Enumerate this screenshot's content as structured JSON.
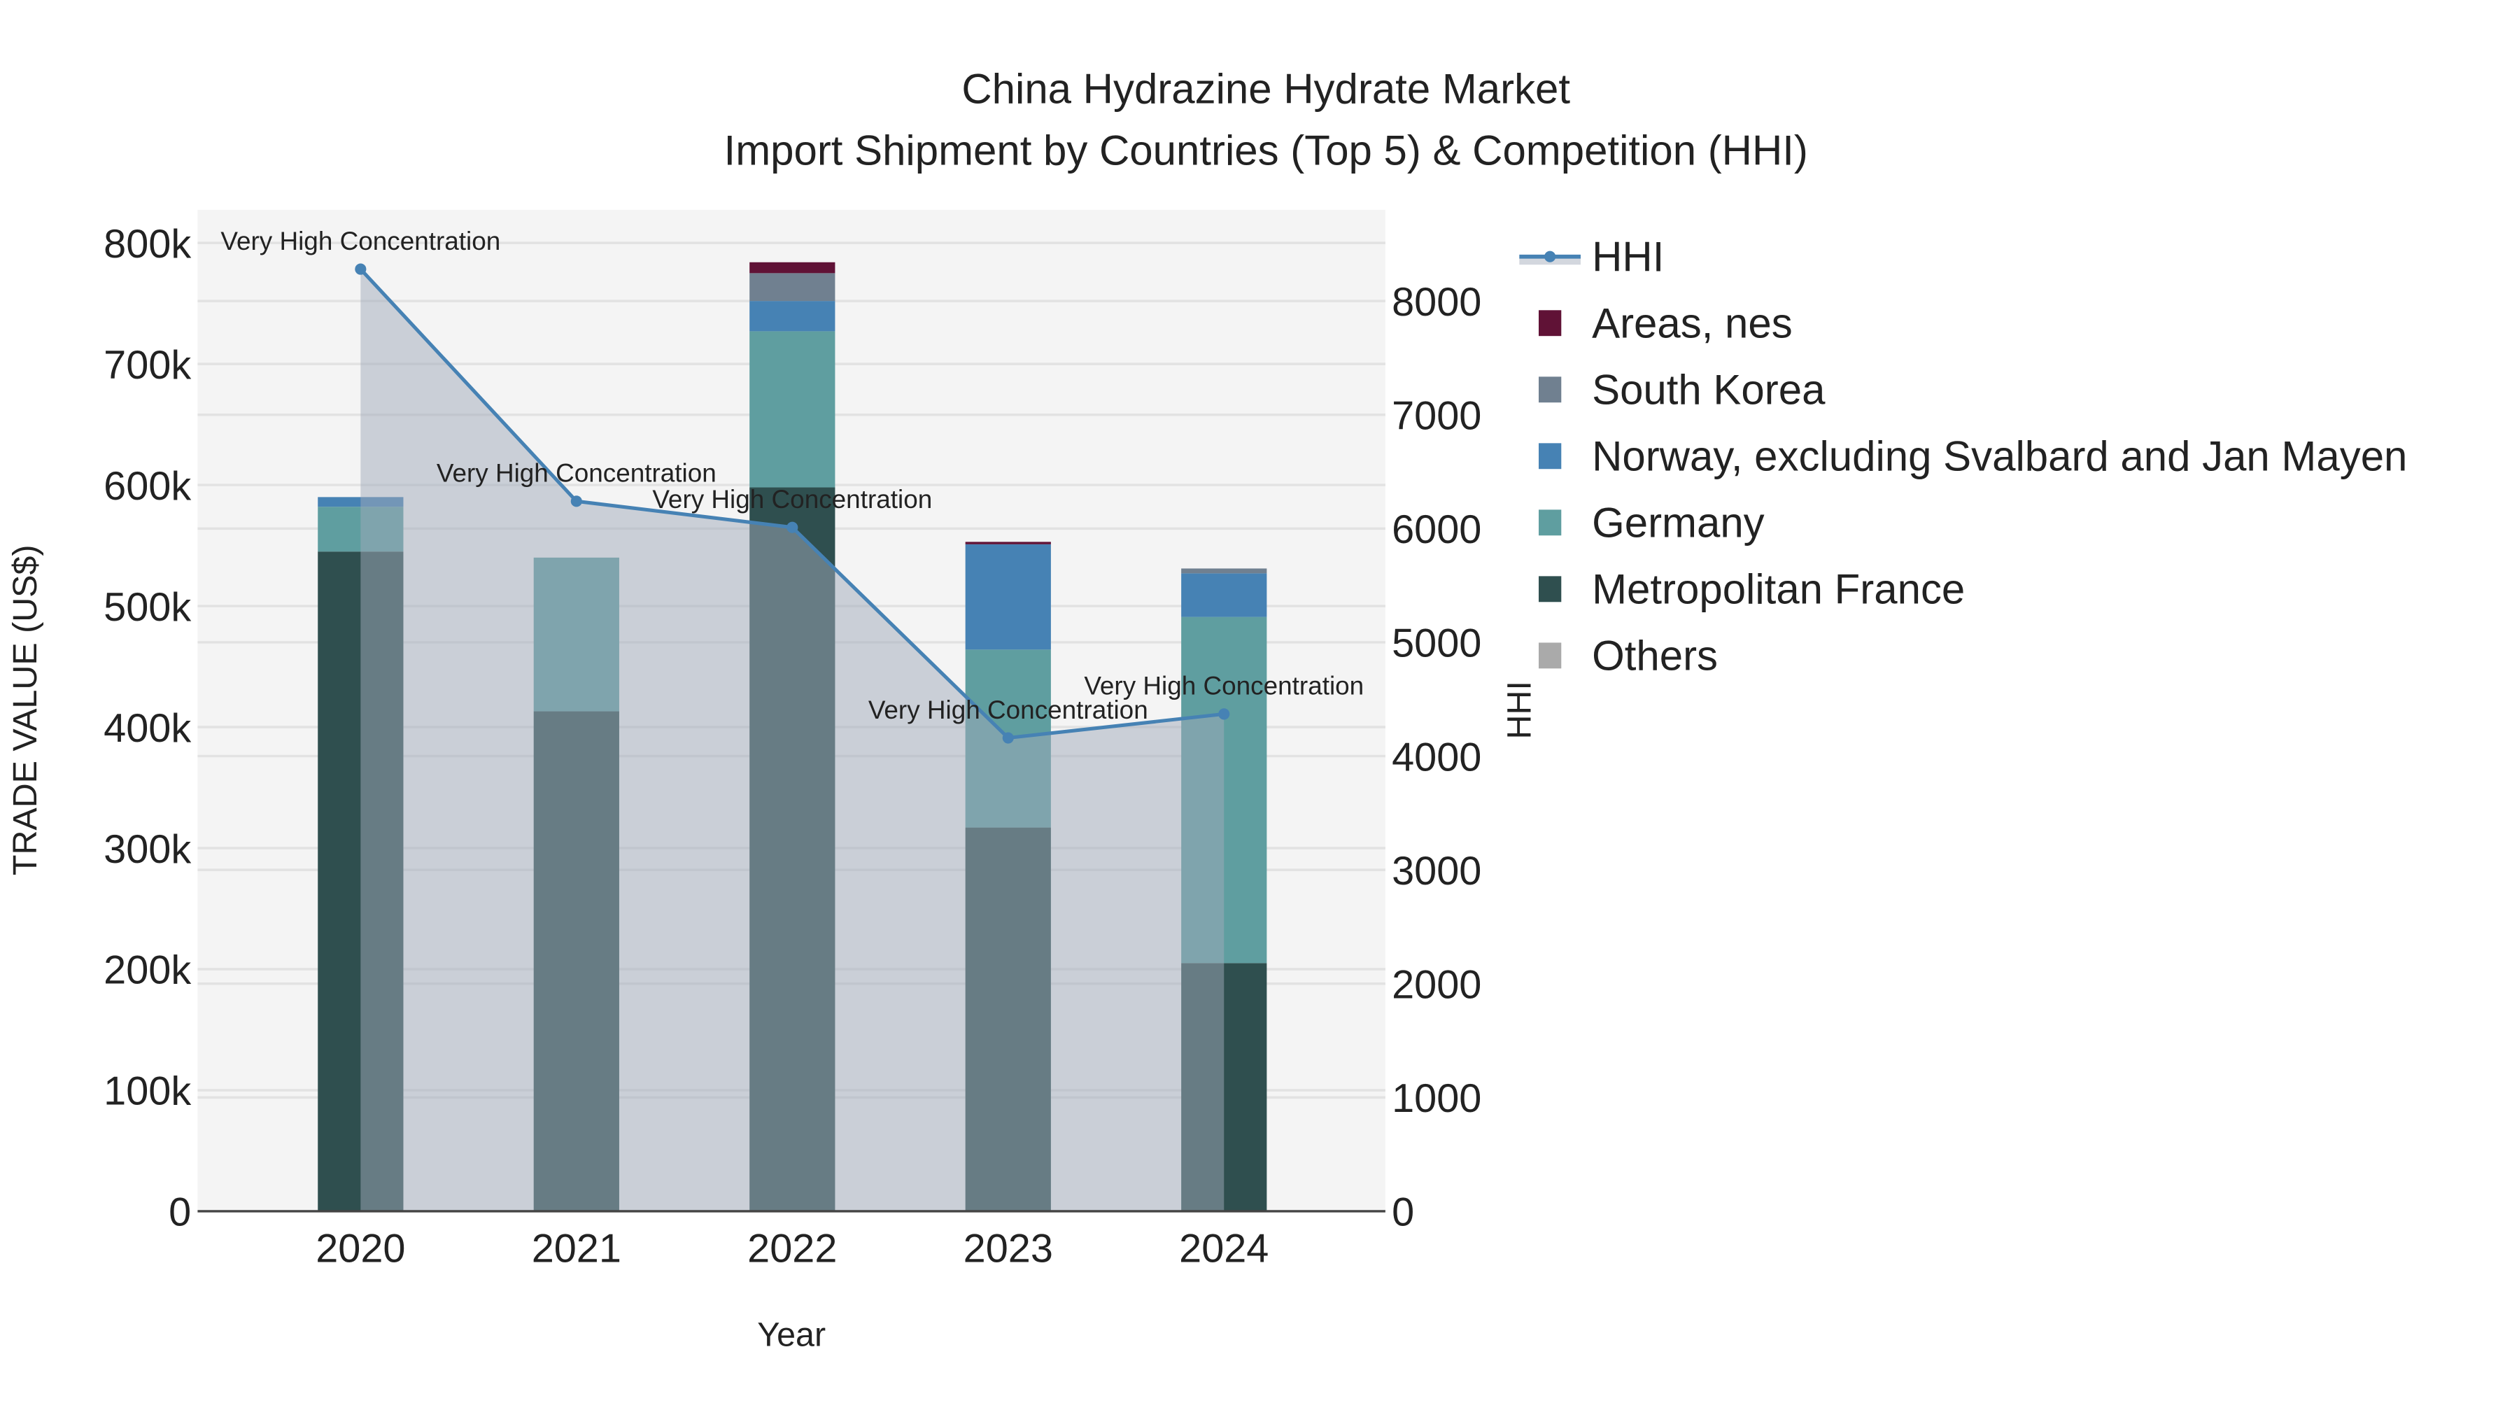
{
  "chart_data": {
    "type": "bar",
    "title": "China Hydrazine Hydrate Market",
    "subtitle": "Import Shipment by Countries (Top 5) & Competition (HHI)",
    "xlabel": "Year",
    "ylabel": "TRADE VALUE (US$)",
    "y2label": "HHI",
    "ylim": [
      0,
      800000
    ],
    "y2lim": [
      0,
      8500
    ],
    "categories": [
      "2020",
      "2021",
      "2022",
      "2023",
      "2024"
    ],
    "yticks": [
      "0",
      "100k",
      "200k",
      "300k",
      "400k",
      "500k",
      "600k",
      "700k",
      "800k"
    ],
    "y2ticks": [
      "0",
      "1000",
      "2000",
      "3000",
      "4000",
      "5000",
      "6000",
      "7000",
      "8000"
    ],
    "stacked": true,
    "grid": true,
    "legend_placement": "right",
    "series": [
      {
        "name": "Others",
        "color": "#aaaaaa",
        "values": [
          0,
          0,
          0,
          0,
          0
        ]
      },
      {
        "name": "Metropolitan France",
        "color": "#2f4f4f",
        "values": [
          545000,
          413000,
          598000,
          317000,
          205000
        ]
      },
      {
        "name": "Germany",
        "color": "#5f9ea0",
        "values": [
          37000,
          127000,
          129000,
          147000,
          286000
        ]
      },
      {
        "name": "Norway, excluding Svalbard and Jan Mayen",
        "color": "#4682b4",
        "values": [
          8000,
          0,
          25000,
          87000,
          36000
        ]
      },
      {
        "name": "South Korea",
        "color": "#708090",
        "values": [
          0,
          0,
          23000,
          0,
          4000
        ]
      },
      {
        "name": "Areas, nes",
        "color": "#601236",
        "values": [
          0,
          0,
          9000,
          2000,
          0
        ]
      }
    ],
    "line_series": {
      "name": "HHI",
      "color": "#4682b4",
      "axis": "right",
      "values": [
        8280,
        6240,
        6010,
        4160,
        4370
      ],
      "annotations": [
        "Very High Concentration",
        "Very High Concentration",
        "Very High Concentration",
        "Very High Concentration",
        "Very High Concentration"
      ]
    },
    "legend": [
      "HHI",
      "Areas, nes",
      "South Korea",
      "Norway, excluding Svalbard and Jan Mayen",
      "Germany",
      "Metropolitan France",
      "Others"
    ]
  }
}
